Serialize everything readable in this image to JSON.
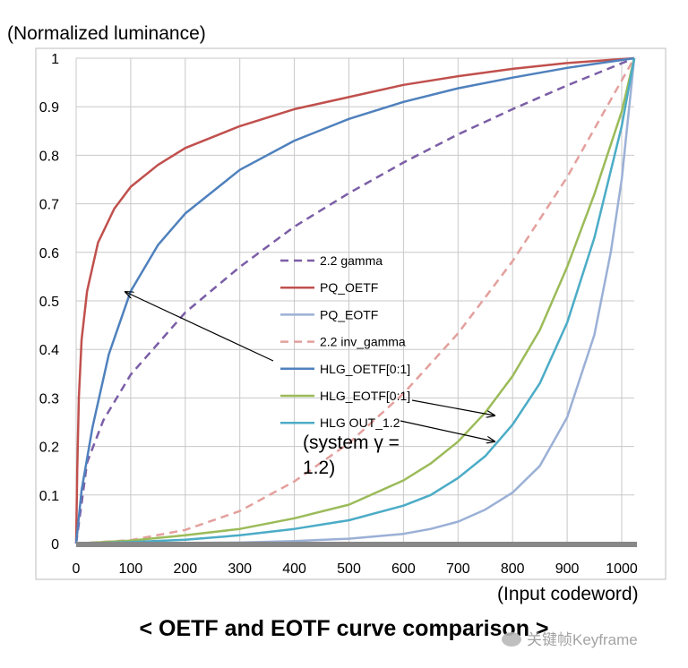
{
  "chart_data": {
    "type": "line",
    "title": "< OETF and EOTF curve comparison >",
    "ylabel": "(Normalized luminance)",
    "xlabel": "(Input codeword)",
    "xlim": [
      0,
      1023
    ],
    "ylim": [
      0,
      1
    ],
    "xticks": [
      0,
      100,
      200,
      300,
      400,
      500,
      600,
      700,
      800,
      900,
      1000
    ],
    "yticks": [
      0,
      0.1,
      0.2,
      0.3,
      0.4,
      0.5,
      0.6,
      0.7,
      0.8,
      0.9,
      1
    ],
    "ytick_labels": [
      "0",
      "0.1",
      "0.2",
      "0.3",
      "0.4",
      "0.5",
      "0.6",
      "0.7",
      "0.8",
      "0.9",
      "1"
    ],
    "legend_position": "center",
    "series": [
      {
        "name": "2.2 gamma",
        "color": "#7b5ea6",
        "dash": true,
        "points": [
          [
            0,
            0
          ],
          [
            20,
            0.167
          ],
          [
            50,
            0.254
          ],
          [
            100,
            0.348
          ],
          [
            200,
            0.476
          ],
          [
            300,
            0.57
          ],
          [
            400,
            0.653
          ],
          [
            500,
            0.722
          ],
          [
            600,
            0.785
          ],
          [
            700,
            0.843
          ],
          [
            800,
            0.895
          ],
          [
            900,
            0.944
          ],
          [
            1023,
            1
          ]
        ]
      },
      {
        "name": "PQ_OETF",
        "color": "#c0504d",
        "dash": false,
        "points": [
          [
            0,
            0
          ],
          [
            2,
            0.15
          ],
          [
            5,
            0.3
          ],
          [
            10,
            0.42
          ],
          [
            20,
            0.52
          ],
          [
            40,
            0.62
          ],
          [
            70,
            0.69
          ],
          [
            100,
            0.735
          ],
          [
            150,
            0.78
          ],
          [
            200,
            0.815
          ],
          [
            300,
            0.86
          ],
          [
            400,
            0.895
          ],
          [
            500,
            0.92
          ],
          [
            600,
            0.945
          ],
          [
            700,
            0.963
          ],
          [
            800,
            0.978
          ],
          [
            900,
            0.99
          ],
          [
            1023,
            1
          ]
        ]
      },
      {
        "name": "PQ_EOTF",
        "color": "#9bb0d6",
        "dash": false,
        "points": [
          [
            0,
            0
          ],
          [
            300,
            0.002
          ],
          [
            400,
            0.005
          ],
          [
            500,
            0.01
          ],
          [
            600,
            0.02
          ],
          [
            650,
            0.03
          ],
          [
            700,
            0.045
          ],
          [
            750,
            0.07
          ],
          [
            800,
            0.105
          ],
          [
            850,
            0.16
          ],
          [
            900,
            0.26
          ],
          [
            950,
            0.43
          ],
          [
            980,
            0.6
          ],
          [
            1000,
            0.75
          ],
          [
            1023,
            1
          ]
        ]
      },
      {
        "name": "2.2 inv_gamma",
        "color": "#e3a09d",
        "dash": true,
        "points": [
          [
            0,
            0
          ],
          [
            100,
            0.007
          ],
          [
            200,
            0.028
          ],
          [
            300,
            0.067
          ],
          [
            400,
            0.128
          ],
          [
            500,
            0.207
          ],
          [
            600,
            0.309
          ],
          [
            700,
            0.433
          ],
          [
            800,
            0.582
          ],
          [
            900,
            0.755
          ],
          [
            1023,
            1
          ]
        ]
      },
      {
        "name": "HLG_OETF[0:1]",
        "color": "#4f81bd",
        "dash": false,
        "points": [
          [
            0,
            0
          ],
          [
            10,
            0.11
          ],
          [
            30,
            0.24
          ],
          [
            60,
            0.39
          ],
          [
            100,
            0.52
          ],
          [
            150,
            0.615
          ],
          [
            200,
            0.68
          ],
          [
            300,
            0.77
          ],
          [
            400,
            0.83
          ],
          [
            500,
            0.875
          ],
          [
            600,
            0.91
          ],
          [
            700,
            0.938
          ],
          [
            800,
            0.96
          ],
          [
            900,
            0.98
          ],
          [
            1023,
            1
          ]
        ]
      },
      {
        "name": "HLG_EOTF[0:1]",
        "color": "#9bbb59",
        "dash": false,
        "points": [
          [
            0,
            0
          ],
          [
            100,
            0.006
          ],
          [
            200,
            0.017
          ],
          [
            300,
            0.03
          ],
          [
            400,
            0.052
          ],
          [
            500,
            0.08
          ],
          [
            600,
            0.13
          ],
          [
            650,
            0.165
          ],
          [
            700,
            0.21
          ],
          [
            750,
            0.27
          ],
          [
            800,
            0.345
          ],
          [
            850,
            0.44
          ],
          [
            900,
            0.57
          ],
          [
            950,
            0.72
          ],
          [
            1000,
            0.89
          ],
          [
            1023,
            1
          ]
        ]
      },
      {
        "name": "HLG OUT_1.2",
        "color": "#4bacc6",
        "dash": false,
        "points": [
          [
            0,
            0
          ],
          [
            100,
            0.003
          ],
          [
            200,
            0.008
          ],
          [
            300,
            0.017
          ],
          [
            400,
            0.03
          ],
          [
            500,
            0.048
          ],
          [
            600,
            0.078
          ],
          [
            650,
            0.1
          ],
          [
            700,
            0.135
          ],
          [
            750,
            0.18
          ],
          [
            800,
            0.245
          ],
          [
            850,
            0.33
          ],
          [
            900,
            0.455
          ],
          [
            950,
            0.63
          ],
          [
            1000,
            0.86
          ],
          [
            1023,
            1
          ]
        ]
      }
    ],
    "annotations": [
      {
        "text_lines": [
          "(system γ =",
          "1.2)"
        ]
      }
    ]
  },
  "watermark_text": "关键帧Keyframe"
}
